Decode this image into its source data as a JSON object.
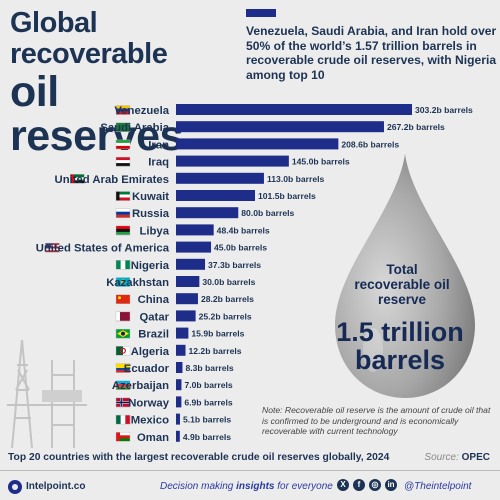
{
  "title": {
    "line1": "Global recoverable",
    "line2": "oil reserves"
  },
  "headline": "Venezuela, Saudi Arabia, and Iran hold over 50% of the world’s 1.57 trillion barrels in recoverable crude oil reserves, with Nigeria among top 10",
  "colors": {
    "bar": "#1e2d8a",
    "title": "#1d3354",
    "background": "#ececec",
    "drop": "#a8a8a8"
  },
  "chart_data": {
    "type": "bar",
    "orientation": "horizontal",
    "categories": [
      "Venezuela",
      "Saudi Arabia",
      "Iran",
      "Iraq",
      "United Arab Emirates",
      "Kuwait",
      "Russia",
      "Libya",
      "United States of America",
      "Nigeria",
      "Kazakhstan",
      "China",
      "Qatar",
      "Brazil",
      "Algeria",
      "Ecuador",
      "Azerbaijan",
      "Norway",
      "Mexico",
      "Oman"
    ],
    "values": [
      303.2,
      267.2,
      208.6,
      145.0,
      113.0,
      101.5,
      80.0,
      48.4,
      45.0,
      37.3,
      30.0,
      28.2,
      25.2,
      15.9,
      12.2,
      8.3,
      7.0,
      6.9,
      5.1,
      4.9
    ],
    "value_labels": [
      "303.2b barrels",
      "267.2b barrels",
      "208.6b barrels",
      "145.0b barrels",
      "113.0b barrels",
      "101.5b barrels",
      "80.0b barrels",
      "48.4b barrels",
      "45.0b barrels",
      "37.3b barrels",
      "30.0b barrels",
      "28.2b barrels",
      "25.2b barrels",
      "15.9b barrels",
      "12.2b barrels",
      "8.3b barrels",
      "7.0b barrels",
      "6.9b barrels",
      "5.1b barrels",
      "4.9b barrels"
    ],
    "flags": [
      "venezuela-flag-icon",
      "saudi-arabia-flag-icon",
      "iran-flag-icon",
      "iraq-flag-icon",
      "uae-flag-icon",
      "kuwait-flag-icon",
      "russia-flag-icon",
      "libya-flag-icon",
      "usa-flag-icon",
      "nigeria-flag-icon",
      "kazakhstan-flag-icon",
      "china-flag-icon",
      "qatar-flag-icon",
      "brazil-flag-icon",
      "algeria-flag-icon",
      "ecuador-flag-icon",
      "azerbaijan-flag-icon",
      "norway-flag-icon",
      "mexico-flag-icon",
      "oman-flag-icon"
    ],
    "unit": "billion barrels",
    "xlim": [
      0,
      303.2
    ],
    "grid": false,
    "legend": "none"
  },
  "drop": {
    "label": "Total recoverable oil reserve",
    "value_line1": "1.5 trillion",
    "value_line2": "barrels"
  },
  "note": "Note: Recoverable oil reserve is the amount of crude oil that is confirmed to be underground and is economically recoverable with current technology",
  "caption": "Top 20 countries with the largest recoverable crude oil reserves globally, 2024",
  "source": {
    "prefix": "Source:",
    "name": "OPEC"
  },
  "footer": {
    "brand": "Intelpoint.co",
    "tagline_pre": "Decision making ",
    "tagline_hl": "insights",
    "tagline_post": " for everyone",
    "handle": "@Theintelpoint",
    "social_icons": [
      "x-icon",
      "facebook-icon",
      "instagram-icon",
      "linkedin-icon"
    ]
  }
}
